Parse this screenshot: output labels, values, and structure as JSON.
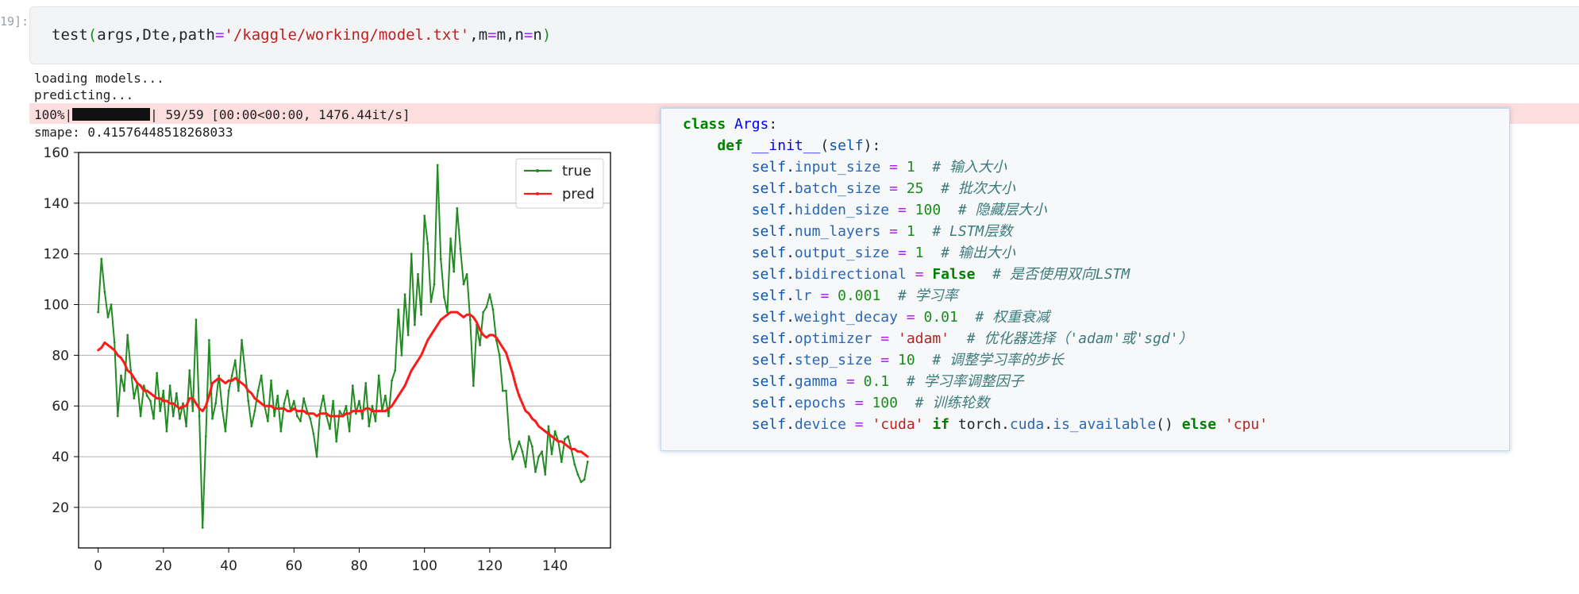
{
  "cell": {
    "prompt": "19]:",
    "input_code": {
      "fn": "test",
      "open": "(",
      "args": "args,Dte,path",
      "eq1": "=",
      "path": "'/kaggle/working/model.txt'",
      "m_part_a": ",m",
      "eq2": "=",
      "m_part_b": "m,n",
      "eq3": "=",
      "n_val": "n",
      "close": ")"
    }
  },
  "output": {
    "lines": [
      "loading models...",
      "predicting..."
    ],
    "progress": {
      "percent_label": "100%|",
      "value": 1.0,
      "suffix": "| 59/59 [00:00<00:00, 1476.44it/s]"
    },
    "smape": "smape: 0.41576448518268033"
  },
  "chart_data": {
    "type": "line",
    "xlim": [
      -6,
      157
    ],
    "ylim": [
      4,
      160
    ],
    "x_ticks": [
      "0",
      "20",
      "40",
      "60",
      "80",
      "100",
      "120",
      "140"
    ],
    "y_ticks": [
      "20",
      "40",
      "60",
      "80",
      "100",
      "120",
      "140",
      "160"
    ],
    "grid": "horizontal",
    "legend_position": "top-right",
    "series": [
      {
        "name": "true",
        "color": "#228b22",
        "marker": "dot",
        "values": [
          97,
          118,
          105,
          95,
          100,
          85,
          56,
          72,
          66,
          88,
          74,
          63,
          69,
          56,
          68,
          64,
          62,
          55,
          73,
          58,
          66,
          50,
          68,
          56,
          65,
          55,
          61,
          52,
          74,
          58,
          94,
          56,
          12,
          48,
          86,
          55,
          61,
          72,
          59,
          50,
          66,
          72,
          78,
          66,
          86,
          74,
          62,
          52,
          58,
          66,
          72,
          60,
          54,
          70,
          56,
          64,
          50,
          61,
          66,
          58,
          62,
          56,
          54,
          63,
          58,
          55,
          49,
          40,
          58,
          64,
          56,
          51,
          62,
          46,
          58,
          56,
          60,
          50,
          68,
          57,
          62,
          55,
          69,
          52,
          60,
          54,
          72,
          58,
          64,
          56,
          70,
          74,
          98,
          80,
          104,
          88,
          120,
          92,
          112,
          96,
          135,
          124,
          101,
          108,
          155,
          118,
          103,
          97,
          126,
          113,
          138,
          122,
          108,
          112,
          94,
          68,
          92,
          84,
          97,
          99,
          104,
          98,
          86,
          80,
          66,
          66,
          47,
          39,
          42,
          46,
          42,
          36,
          48,
          44,
          34,
          40,
          42,
          33,
          52,
          41,
          50,
          46,
          38,
          47,
          48,
          43,
          37,
          33,
          30,
          31,
          38
        ]
      },
      {
        "name": "pred",
        "color": "#ff1a1a",
        "marker": "dot",
        "values": [
          82,
          83,
          85,
          84,
          83,
          82,
          80,
          79,
          77,
          74,
          73,
          71,
          69,
          68,
          66,
          66,
          65,
          64,
          63,
          63,
          62,
          62,
          61,
          61,
          60,
          59,
          60,
          60,
          63,
          63,
          61,
          59,
          58,
          60,
          64,
          69,
          70,
          71,
          70,
          69,
          70,
          70,
          71,
          70,
          69,
          68,
          66,
          65,
          63,
          62,
          61,
          60,
          60,
          60,
          59,
          59,
          59,
          59,
          58,
          58,
          59,
          58,
          58,
          58,
          57,
          57,
          57,
          56,
          57,
          57,
          57,
          56,
          56,
          56,
          56,
          56,
          57,
          57,
          58,
          58,
          58,
          58,
          59,
          59,
          58,
          58,
          58,
          58,
          58,
          59,
          60,
          62,
          64,
          66,
          68,
          71,
          74,
          76,
          78,
          80,
          83,
          86,
          88,
          90,
          92,
          94,
          95,
          96,
          97,
          97,
          97,
          96,
          95,
          96,
          96,
          95,
          93,
          90,
          88,
          87,
          88,
          88,
          87,
          85,
          83,
          81,
          77,
          73,
          68,
          64,
          61,
          58,
          57,
          55,
          54,
          52,
          51,
          50,
          49,
          48,
          47,
          46,
          46,
          45,
          44,
          43,
          43,
          42,
          42,
          41,
          40
        ]
      }
    ]
  }
}
